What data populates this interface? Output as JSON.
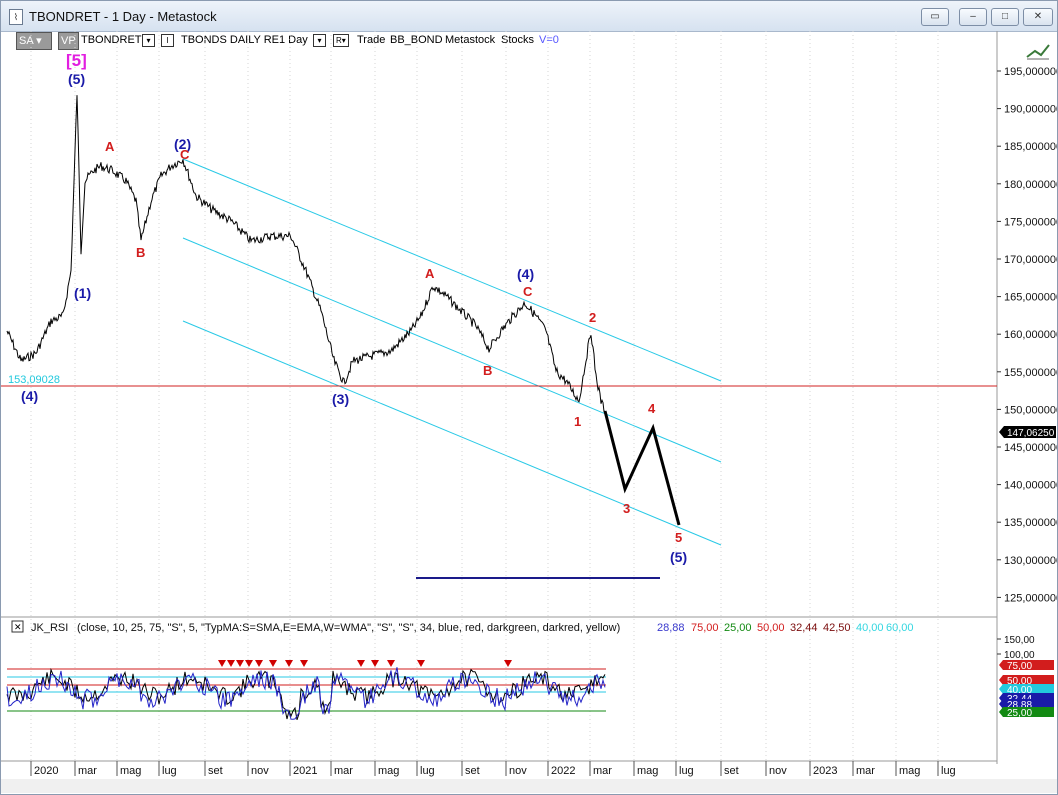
{
  "window": {
    "title": "TBONDRET - 1 Day - Metastock",
    "app_icon": "chart-icon",
    "buttons": [
      "restore-small-icon",
      "minimize-icon",
      "maximize-icon",
      "close-icon"
    ]
  },
  "toolbar": {
    "sa_label": "SA",
    "vp_label": "VP",
    "symbol": "TBONDRET",
    "description": "TBONDS DAILY RE",
    "periodicity": "1 Day",
    "r_label": "R",
    "trade": "Trade",
    "account": "BB_BOND",
    "feed": "Metastock",
    "type": "Stocks",
    "v_label": "V=0"
  },
  "price_axis": {
    "ticks": [
      "195,000000",
      "190,000000",
      "185,000000",
      "180,000000",
      "175,000000",
      "170,000000",
      "165,000000",
      "160,000000",
      "155,000000",
      "150,000000",
      "145,000000",
      "140,000000",
      "135,000000",
      "130,000000",
      "125,000000"
    ],
    "last_price": "147,06250",
    "ref_line_label": "153,09028"
  },
  "waves": {
    "super_5": "[5]",
    "primary": [
      "(5)",
      "(1)",
      "(2)",
      "(3)",
      "(4)",
      "(4)",
      "(5)"
    ],
    "red": [
      "A",
      "B",
      "C",
      "A",
      "B",
      "C",
      "1",
      "2",
      "3",
      "4",
      "5"
    ]
  },
  "indicator": {
    "name": "JK_RSI",
    "params": "(close, 10, 25, 75, \"S\", 5, \"TypMA:S=SMA,E=EMA,W=WMA\", \"S\", \"S\", 34, blue, red, darkgreen, darkred, yellow)",
    "values": [
      {
        "text": "28,88",
        "color": "#3a3acd"
      },
      {
        "text": "75,00",
        "color": "#d21d1d"
      },
      {
        "text": "25,00",
        "color": "#138a13"
      },
      {
        "text": "50,00",
        "color": "#d21d1d"
      },
      {
        "text": "32,44",
        "color": "#7a0c0c"
      },
      {
        "text": "42,50",
        "color": "#7a0c0c"
      },
      {
        "text": "40,00",
        "color": "#33d6e0"
      },
      {
        "text": "60,00",
        "color": "#33d6e0"
      }
    ],
    "axis_ticks": [
      "150,00",
      "100,00"
    ],
    "tags": [
      {
        "text": "75,00",
        "color": "#d21d1d"
      },
      {
        "text": "50,00",
        "color": "#d21d1d"
      },
      {
        "text": "40,00",
        "color": "#22c9dd"
      },
      {
        "text": "32,44",
        "color": "#1a1aa8"
      },
      {
        "text": "28,88",
        "color": "#1a1aa8"
      },
      {
        "text": "25,00",
        "color": "#138a13"
      }
    ]
  },
  "time_axis": [
    "2020",
    "mar",
    "mag",
    "lug",
    "set",
    "nov",
    "2021",
    "mar",
    "mag",
    "lug",
    "set",
    "nov",
    "2022",
    "mar",
    "mag",
    "lug",
    "set",
    "nov",
    "2023",
    "mar",
    "mag",
    "lug"
  ],
  "colors": {
    "channel": "#29c9e6",
    "wave_red": "#d21d1d",
    "wave_blue": "#1a1aa8",
    "super_magenta": "#e21ee0",
    "target_line": "#1a1a8a",
    "ref_line": "#d02020"
  }
}
